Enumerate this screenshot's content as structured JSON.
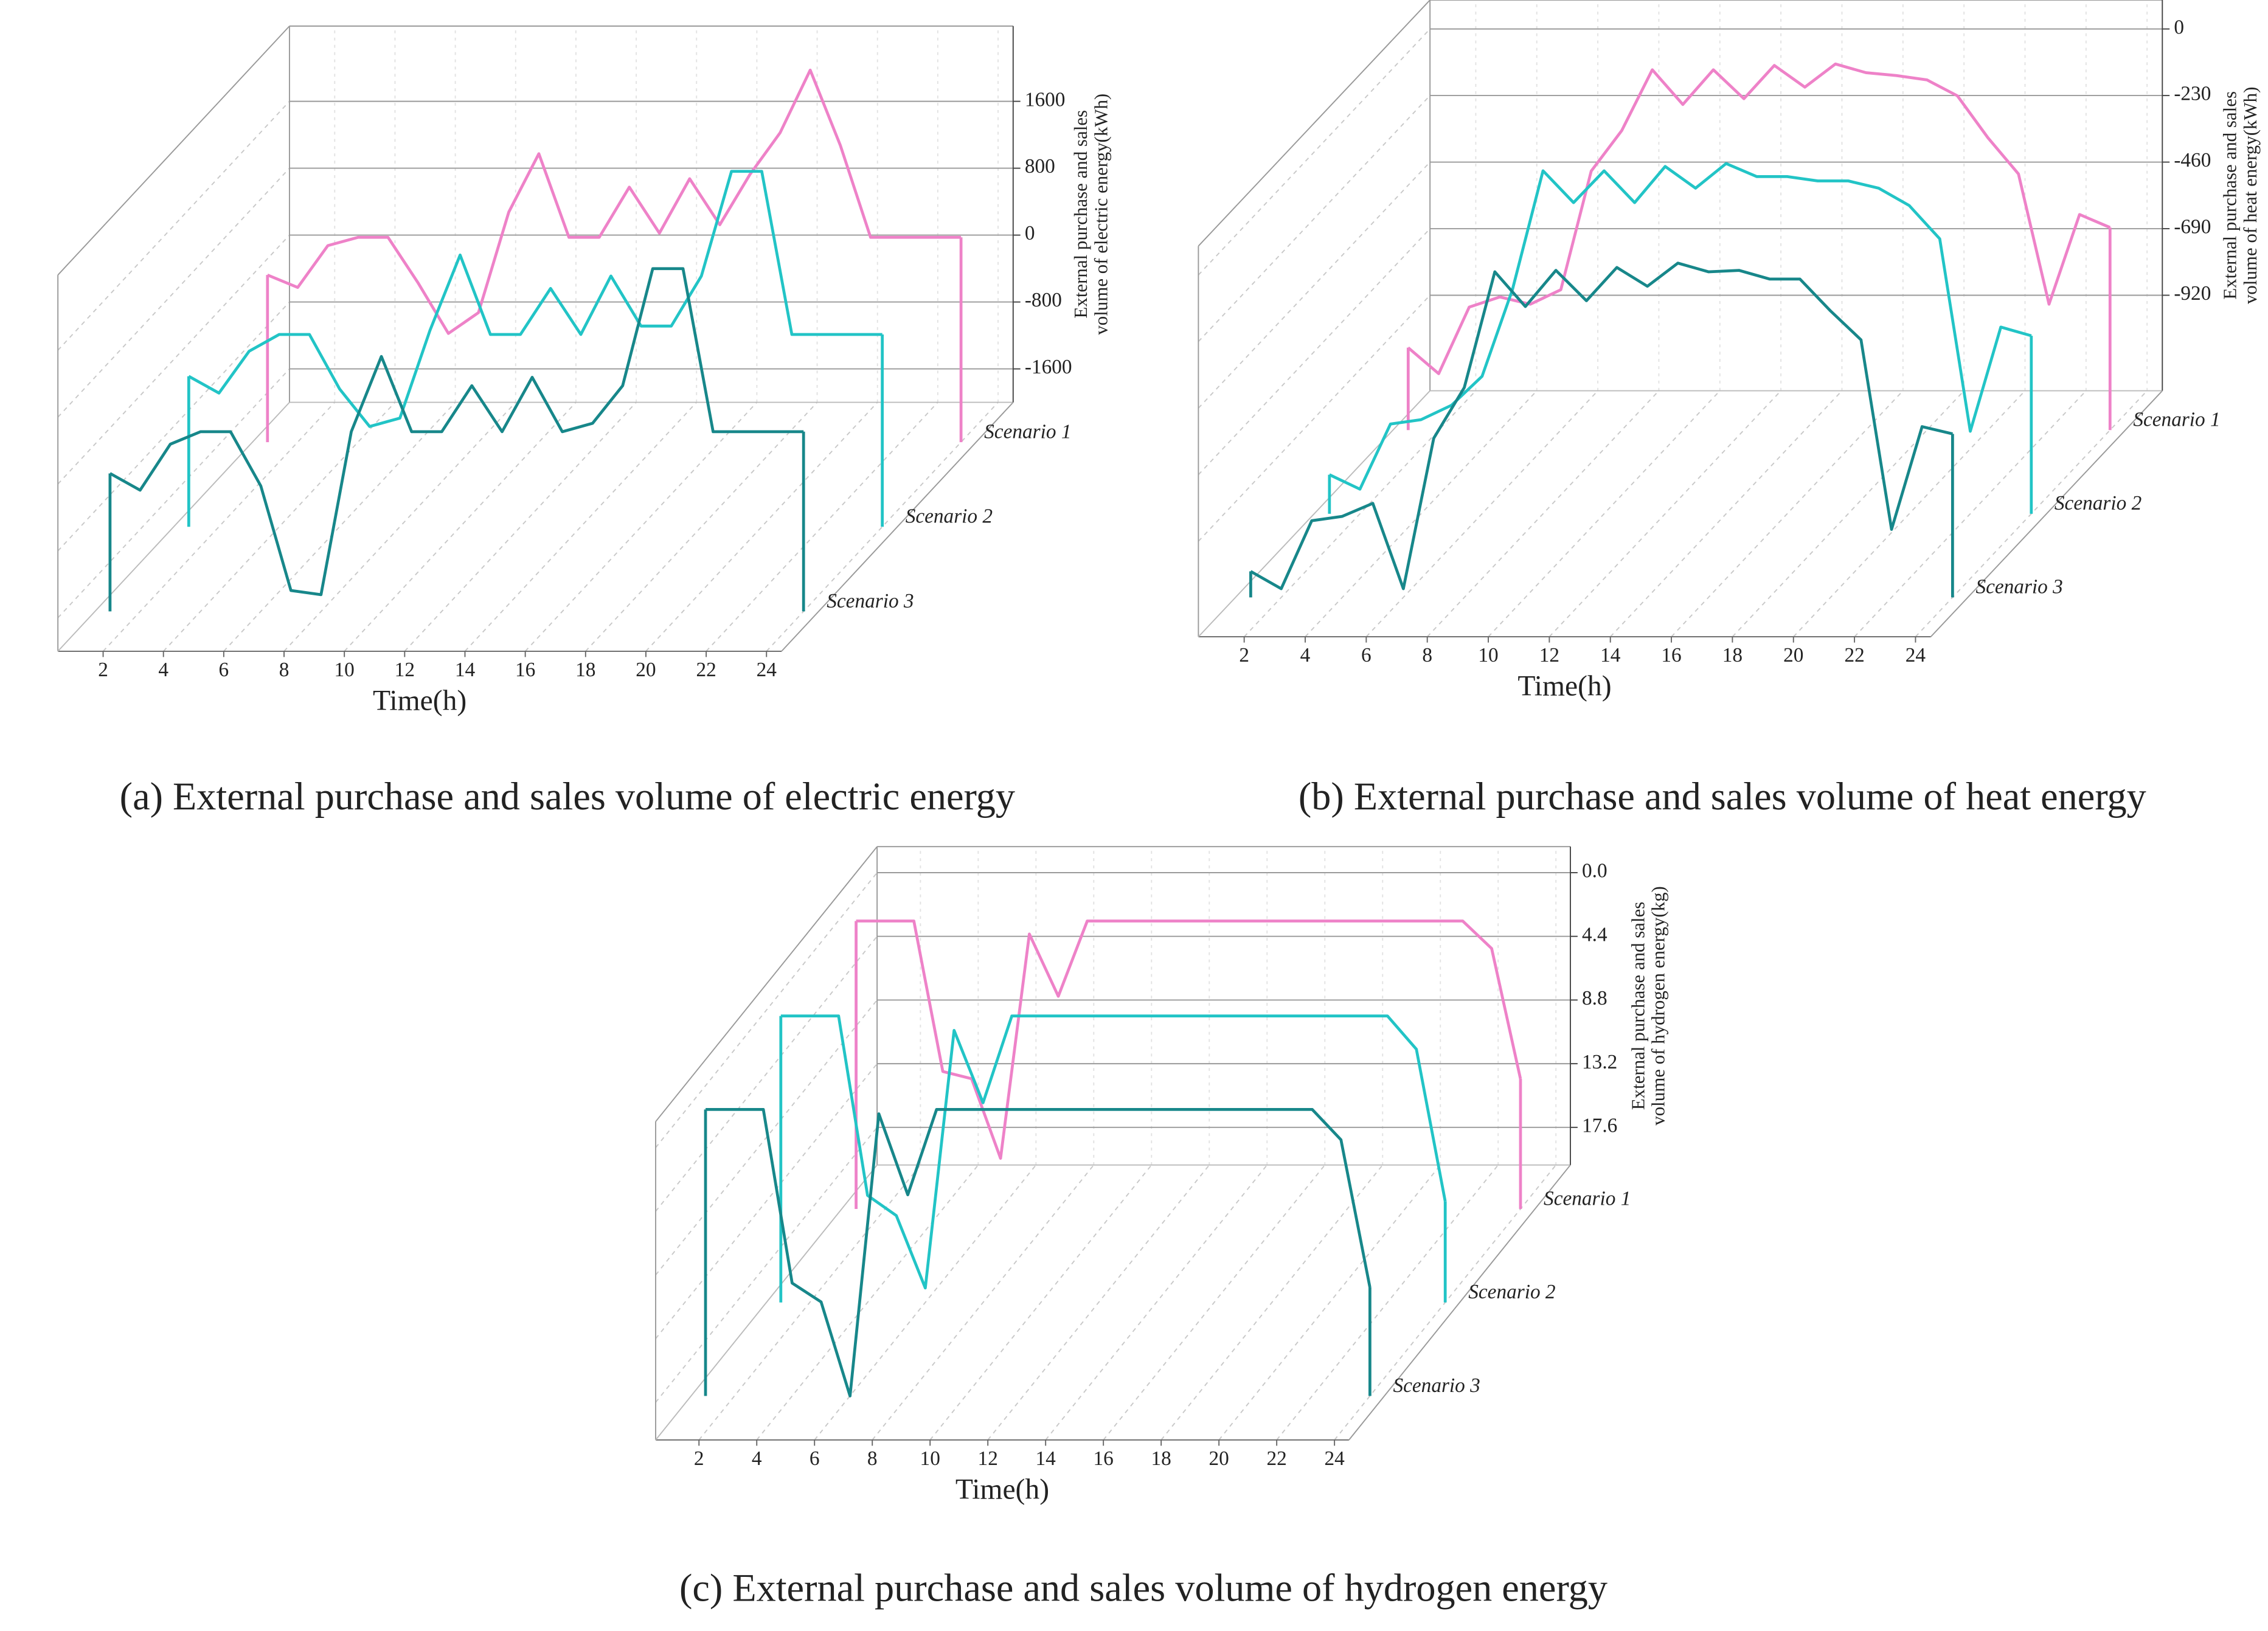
{
  "chart_data": [
    {
      "type": "line",
      "caption": "(a) External purchase and sales volume of electric energy",
      "xlabel": "Time(h)",
      "ylabel": [
        "External purchase and sales",
        "volume of electric energy(kWh)"
      ],
      "x": [
        1,
        2,
        3,
        4,
        5,
        6,
        7,
        8,
        9,
        10,
        11,
        12,
        13,
        14,
        15,
        16,
        17,
        18,
        19,
        20,
        21,
        22,
        23,
        24
      ],
      "xlim": [
        0.5,
        24.5
      ],
      "xticks": [
        2,
        4,
        6,
        8,
        10,
        12,
        14,
        16,
        18,
        20,
        22,
        24
      ],
      "ylim": [
        -2000,
        2500
      ],
      "yticks": [
        -1600,
        -800,
        0,
        800,
        1600
      ],
      "series": [
        {
          "name": "Scenario 1",
          "color": "#ee82c8",
          "values": [
            0,
            -150,
            350,
            450,
            450,
            -100,
            -700,
            -450,
            750,
            1450,
            450,
            450,
            1050,
            500,
            1150,
            600,
            1200,
            1700,
            2450,
            1550,
            450,
            450,
            450,
            450
          ]
        },
        {
          "name": "Scenario 2",
          "color": "#22c4c6",
          "values": [
            -200,
            -400,
            100,
            300,
            300,
            -350,
            -800,
            -700,
            350,
            1250,
            300,
            300,
            850,
            300,
            1000,
            400,
            400,
            1000,
            2250,
            2250,
            300,
            300,
            300,
            300
          ]
        },
        {
          "name": "Scenario 3",
          "color": "#17878a",
          "values": [
            -350,
            -550,
            0,
            150,
            150,
            -500,
            -1750,
            -1800,
            150,
            1050,
            150,
            150,
            700,
            150,
            800,
            150,
            250,
            700,
            2100,
            2100,
            150,
            150,
            150,
            150
          ]
        }
      ]
    },
    {
      "type": "line",
      "caption": "(b) External purchase and sales volume of heat energy",
      "xlabel": "Time(h)",
      "ylabel": [
        "External purchase and sales",
        "volume of heat energy(kWh)"
      ],
      "x": [
        1,
        2,
        3,
        4,
        5,
        6,
        7,
        8,
        9,
        10,
        11,
        12,
        13,
        14,
        15,
        16,
        17,
        18,
        19,
        20,
        21,
        22,
        23,
        24
      ],
      "xlim": [
        0.5,
        24.5
      ],
      "xticks": [
        2,
        4,
        6,
        8,
        10,
        12,
        14,
        16,
        18,
        20,
        22,
        24
      ],
      "ylim": [
        -1250,
        100
      ],
      "yticks": [
        -920,
        -690,
        -460,
        -230,
        0
      ],
      "series": [
        {
          "name": "Scenario 1",
          "color": "#ee82c8",
          "values": [
            -965,
            -1055,
            -825,
            -790,
            -815,
            -765,
            -355,
            -215,
            -5,
            -125,
            -5,
            -105,
            10,
            -65,
            15,
            -15,
            -25,
            -40,
            -95,
            -240,
            -365,
            -815,
            -505,
            -550
          ]
        },
        {
          "name": "Scenario 2",
          "color": "#22c4c6",
          "values": [
            -1115,
            -1165,
            -940,
            -925,
            -875,
            -775,
            -475,
            -65,
            -175,
            -65,
            -175,
            -50,
            -125,
            -40,
            -85,
            -85,
            -100,
            -100,
            -125,
            -185,
            -300,
            -965,
            -605,
            -635
          ]
        },
        {
          "name": "Scenario 3",
          "color": "#17878a",
          "values": [
            -1160,
            -1220,
            -985,
            -970,
            -925,
            -1220,
            -700,
            -525,
            -125,
            -245,
            -120,
            -225,
            -110,
            -175,
            -95,
            -125,
            -120,
            -150,
            -150,
            -260,
            -360,
            -1015,
            -660,
            -685
          ]
        }
      ]
    },
    {
      "type": "line",
      "caption": "(c) External purchase and sales volume of hydrogen energy",
      "xlabel": "Time(h)",
      "ylabel": [
        "External purchase and sales",
        "volume of hydrogen energy(kg)"
      ],
      "x": [
        1,
        2,
        3,
        4,
        5,
        6,
        7,
        8,
        9,
        10,
        11,
        12,
        13,
        14,
        15,
        16,
        17,
        18,
        19,
        20,
        21,
        22,
        23,
        24
      ],
      "xlim": [
        0.5,
        24.5
      ],
      "xticks": [
        2,
        4,
        6,
        8,
        10,
        12,
        14,
        16,
        18,
        20,
        22,
        24
      ],
      "ylim": [
        20.2,
        -1.8
      ],
      "yticks": [
        {
          "value": 0,
          "label": "0.0"
        },
        4.4,
        8.8,
        13.2,
        17.6
      ],
      "series": [
        {
          "name": "Scenario 1",
          "color": "#ee82c8",
          "values": [
            0.3,
            0.3,
            0.3,
            10.7,
            11.2,
            16.7,
            1.2,
            5.5,
            0.3,
            0.3,
            0.3,
            0.3,
            0.3,
            0.3,
            0.3,
            0.3,
            0.3,
            0.3,
            0.3,
            0.3,
            0.3,
            0.3,
            2.2,
            11.2
          ]
        },
        {
          "name": "Scenario 2",
          "color": "#22c4c6",
          "values": [
            0.4,
            0.4,
            0.4,
            12.8,
            14.2,
            19.2,
            1.4,
            6.4,
            0.4,
            0.4,
            0.4,
            0.4,
            0.4,
            0.4,
            0.4,
            0.4,
            0.4,
            0.4,
            0.4,
            0.4,
            0.4,
            0.4,
            2.7,
            13.2
          ]
        },
        {
          "name": "Scenario 3",
          "color": "#17878a",
          "values": [
            0.4,
            0.4,
            0.4,
            12.4,
            13.7,
            20.2,
            0.7,
            6.3,
            0.4,
            0.4,
            0.4,
            0.4,
            0.4,
            0.4,
            0.4,
            0.4,
            0.4,
            0.4,
            0.4,
            0.4,
            0.4,
            0.4,
            2.5,
            12.7
          ]
        }
      ]
    }
  ]
}
